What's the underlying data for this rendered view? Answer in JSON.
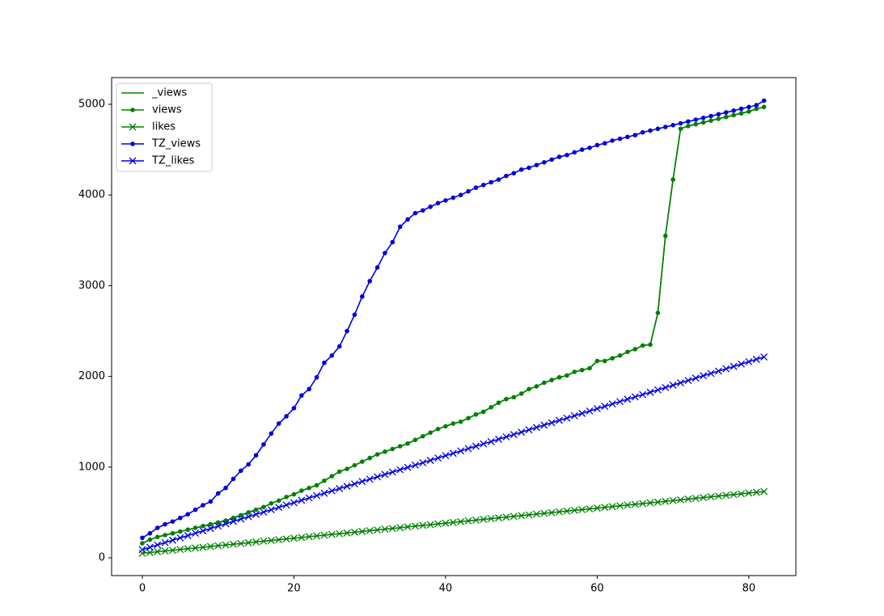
{
  "chart_data": {
    "type": "line",
    "x": [
      0,
      1,
      2,
      3,
      4,
      5,
      6,
      7,
      8,
      9,
      10,
      11,
      12,
      13,
      14,
      15,
      16,
      17,
      18,
      19,
      20,
      21,
      22,
      23,
      24,
      25,
      26,
      27,
      28,
      29,
      30,
      31,
      32,
      33,
      34,
      35,
      36,
      37,
      38,
      39,
      40,
      41,
      42,
      43,
      44,
      45,
      46,
      47,
      48,
      49,
      50,
      51,
      52,
      53,
      54,
      55,
      56,
      57,
      58,
      59,
      60,
      61,
      62,
      63,
      64,
      65,
      66,
      67,
      68,
      69,
      70,
      71,
      72,
      73,
      74,
      75,
      76,
      77,
      78,
      79,
      80,
      81,
      82
    ],
    "xlim": [
      -4.05,
      86.2
    ],
    "xticks": [
      0,
      20,
      40,
      60,
      80
    ],
    "ylim": [
      -196,
      5294
    ],
    "yticks": [
      0,
      1000,
      2000,
      3000,
      4000,
      5000
    ],
    "legend": "upper left",
    "series": [
      {
        "name": "_views",
        "color": "#008000",
        "marker": null,
        "values": [
          160,
          200,
          230,
          250,
          270,
          290,
          310,
          330,
          350,
          370,
          390,
          410,
          440,
          470,
          500,
          530,
          560,
          600,
          630,
          670,
          700,
          740,
          770,
          800,
          850,
          900,
          950,
          980,
          1020,
          1060,
          1100,
          1140,
          1170,
          1200,
          1230,
          1260,
          1300,
          1340,
          1380,
          1420,
          1450,
          1480,
          1500,
          1540,
          1580,
          1610,
          1660,
          1710,
          1750,
          1770,
          1810,
          1860,
          1890,
          1930,
          1960,
          1990,
          2010,
          2050,
          2070,
          2090,
          2170,
          2170,
          2200,
          2230,
          2270,
          2300,
          2340,
          2350,
          2700,
          3550,
          4170,
          4730,
          4760,
          4780,
          4800,
          4820,
          4840,
          4860,
          4880,
          4900,
          4920,
          4950,
          4970
        ]
      },
      {
        "name": "views",
        "color": "#008000",
        "marker": "o",
        "values": [
          160,
          200,
          230,
          250,
          270,
          290,
          310,
          330,
          350,
          370,
          390,
          410,
          440,
          470,
          500,
          530,
          560,
          600,
          630,
          670,
          700,
          740,
          770,
          800,
          850,
          900,
          950,
          980,
          1020,
          1060,
          1100,
          1140,
          1170,
          1200,
          1230,
          1260,
          1300,
          1340,
          1380,
          1420,
          1450,
          1480,
          1500,
          1540,
          1580,
          1610,
          1660,
          1710,
          1750,
          1770,
          1810,
          1860,
          1890,
          1930,
          1960,
          1990,
          2010,
          2050,
          2070,
          2090,
          2170,
          2170,
          2200,
          2230,
          2270,
          2300,
          2340,
          2350,
          2700,
          3550,
          4170,
          4730,
          4760,
          4780,
          4800,
          4820,
          4840,
          4860,
          4880,
          4900,
          4920,
          4950,
          4970
        ]
      },
      {
        "name": "likes",
        "color": "#008000",
        "marker": "x",
        "values": [
          50,
          58,
          67,
          75,
          83,
          92,
          100,
          108,
          116,
          125,
          133,
          141,
          150,
          158,
          166,
          175,
          183,
          191,
          199,
          208,
          216,
          224,
          233,
          241,
          249,
          258,
          266,
          274,
          282,
          291,
          299,
          307,
          316,
          324,
          332,
          341,
          349,
          357,
          365,
          374,
          382,
          390,
          399,
          407,
          415,
          424,
          432,
          440,
          448,
          457,
          465,
          473,
          482,
          490,
          498,
          507,
          515,
          523,
          531,
          540,
          548,
          556,
          565,
          573,
          581,
          590,
          598,
          606,
          614,
          623,
          631,
          639,
          648,
          656,
          664,
          673,
          681,
          689,
          697,
          706,
          714,
          722,
          731
        ]
      },
      {
        "name": "TZ_views",
        "color": "#0000e0",
        "marker": "o",
        "values": [
          220,
          270,
          330,
          370,
          400,
          440,
          480,
          530,
          580,
          620,
          710,
          770,
          870,
          960,
          1030,
          1130,
          1250,
          1370,
          1480,
          1560,
          1650,
          1790,
          1860,
          1990,
          2150,
          2230,
          2330,
          2500,
          2680,
          2880,
          3050,
          3200,
          3360,
          3480,
          3650,
          3730,
          3800,
          3830,
          3870,
          3910,
          3940,
          3970,
          4000,
          4040,
          4080,
          4110,
          4140,
          4170,
          4210,
          4240,
          4280,
          4300,
          4330,
          4360,
          4390,
          4420,
          4440,
          4470,
          4500,
          4520,
          4550,
          4570,
          4600,
          4620,
          4640,
          4660,
          4690,
          4710,
          4730,
          4750,
          4770,
          4790,
          4810,
          4830,
          4850,
          4870,
          4890,
          4910,
          4930,
          4950,
          4970,
          4990,
          5040
        ]
      },
      {
        "name": "TZ_likes",
        "color": "#0000e0",
        "marker": "x",
        "values": [
          90,
          116,
          142,
          168,
          194,
          220,
          245,
          271,
          297,
          323,
          349,
          375,
          401,
          427,
          453,
          479,
          504,
          530,
          556,
          582,
          608,
          634,
          660,
          686,
          712,
          738,
          763,
          789,
          815,
          841,
          867,
          893,
          919,
          945,
          971,
          997,
          1022,
          1048,
          1074,
          1100,
          1126,
          1152,
          1178,
          1204,
          1230,
          1256,
          1281,
          1307,
          1333,
          1359,
          1385,
          1411,
          1437,
          1463,
          1489,
          1515,
          1540,
          1566,
          1592,
          1618,
          1644,
          1670,
          1696,
          1722,
          1748,
          1774,
          1799,
          1825,
          1851,
          1877,
          1903,
          1929,
          1955,
          1981,
          2007,
          2033,
          2058,
          2084,
          2110,
          2136,
          2162,
          2188,
          2214
        ]
      }
    ]
  }
}
